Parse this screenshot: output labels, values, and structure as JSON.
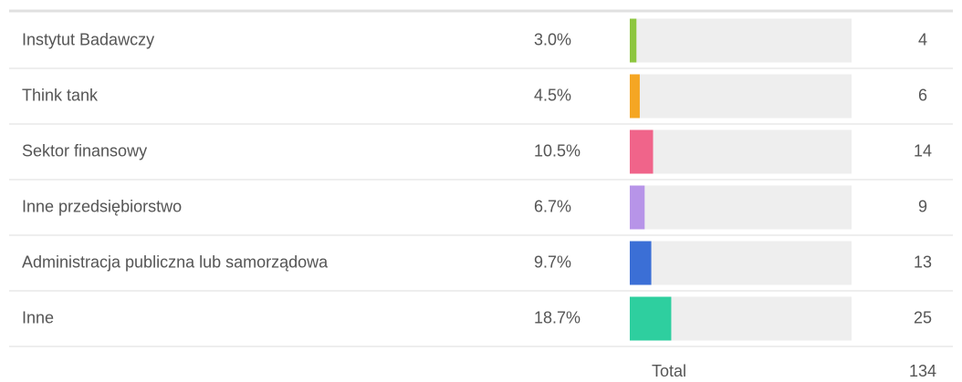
{
  "chart_data": {
    "type": "bar",
    "categories": [
      "Instytut Badawczy",
      "Think tank",
      "Sektor finansowy",
      "Inne przedsiębiorstwo",
      "Administracja publiczna lub samorządowa",
      "Inne"
    ],
    "values": [
      3.0,
      4.5,
      10.5,
      6.7,
      9.7,
      18.7
    ],
    "value_labels": [
      "3.0%",
      "4.5%",
      "10.5%",
      "6.7%",
      "9.7%",
      "18.7%"
    ],
    "counts": [
      4,
      6,
      14,
      9,
      13,
      25
    ],
    "colors": [
      "#8dc63f",
      "#f5a623",
      "#f0648a",
      "#b794e8",
      "#3b6fd6",
      "#2ecf9f"
    ],
    "xlim": [
      0,
      100
    ],
    "total_label": "Total",
    "total": 134
  }
}
